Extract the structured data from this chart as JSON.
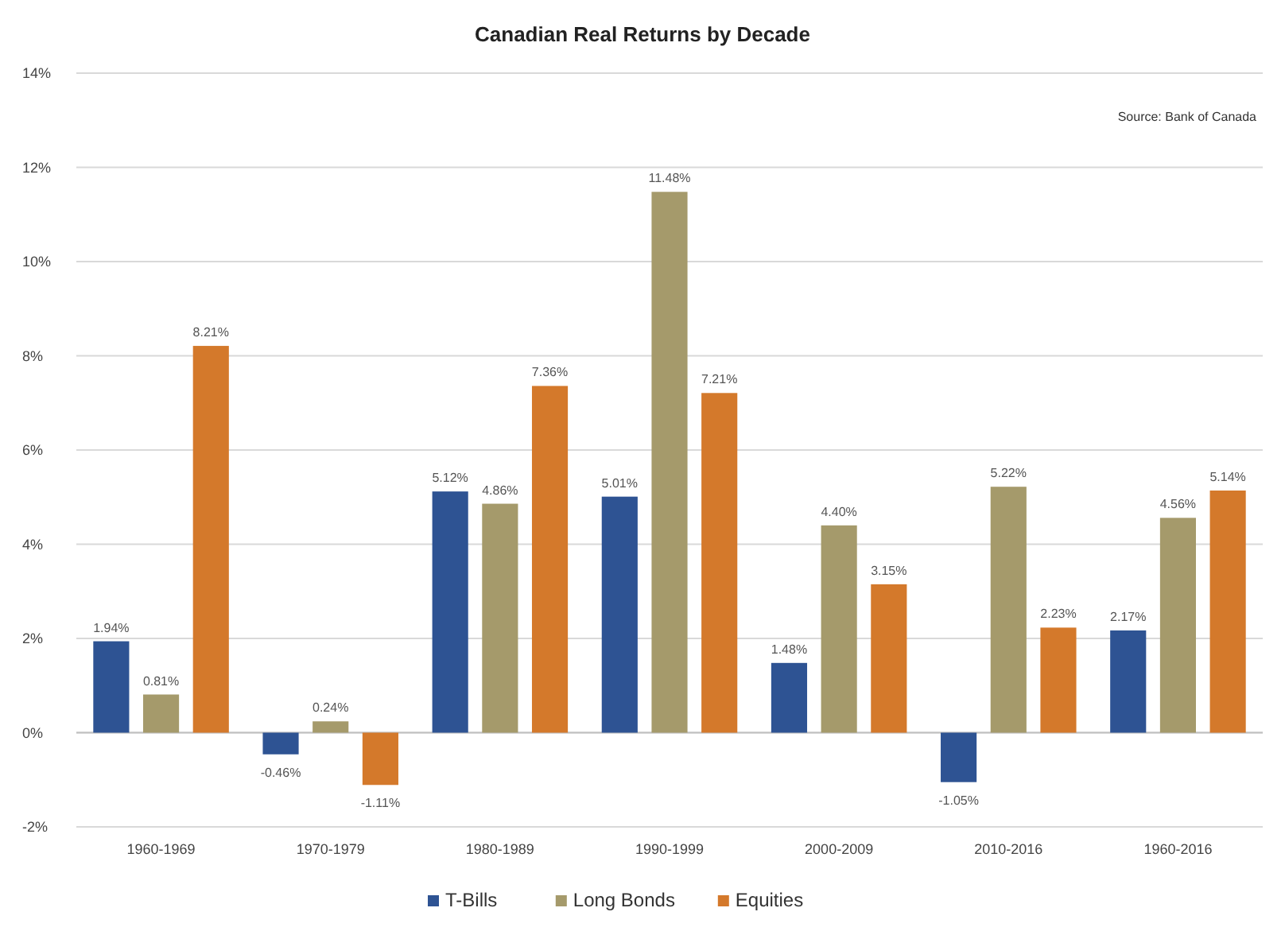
{
  "chart_data": {
    "type": "bar",
    "title": "Canadian Real Returns by Decade",
    "annotations": [
      "Source: Bank of Canada"
    ],
    "categories": [
      "1960-1969",
      "1970-1979",
      "1980-1989",
      "1990-1999",
      "2000-2009",
      "2010-2016",
      "1960-2016"
    ],
    "series": [
      {
        "name": "T-Bills",
        "color": "#2e5393",
        "values": [
          1.94,
          -0.46,
          5.12,
          5.01,
          1.48,
          -1.05,
          2.17
        ],
        "value_labels": [
          "1.94%",
          "-0.46%",
          "5.12%",
          "5.01%",
          "1.48%",
          "-1.05%",
          "2.17%"
        ]
      },
      {
        "name": "Long Bonds",
        "color": "#a59a6b",
        "values": [
          0.81,
          0.24,
          4.86,
          11.48,
          4.4,
          5.22,
          4.56
        ],
        "value_labels": [
          "0.81%",
          "0.24%",
          "4.86%",
          "11.48%",
          "4.40%",
          "5.22%",
          "4.56%"
        ]
      },
      {
        "name": "Equities",
        "color": "#d4792b",
        "values": [
          8.21,
          -1.11,
          7.36,
          7.21,
          3.15,
          2.23,
          5.14
        ],
        "value_labels": [
          "8.21%",
          "-1.11%",
          "7.36%",
          "7.21%",
          "3.15%",
          "2.23%",
          "5.14%"
        ]
      }
    ],
    "ylim": [
      -2,
      14
    ],
    "yticks": [
      {
        "value": -2,
        "label": "-2%"
      },
      {
        "value": 0,
        "label": "0%"
      },
      {
        "value": 2,
        "label": "2%"
      },
      {
        "value": 4,
        "label": "4%"
      },
      {
        "value": 6,
        "label": "6%"
      },
      {
        "value": 8,
        "label": "8%"
      },
      {
        "value": 10,
        "label": "10%"
      },
      {
        "value": 12,
        "label": "12%"
      },
      {
        "value": 14,
        "label": "14%"
      }
    ],
    "grid": "y",
    "legend": "bottom"
  }
}
